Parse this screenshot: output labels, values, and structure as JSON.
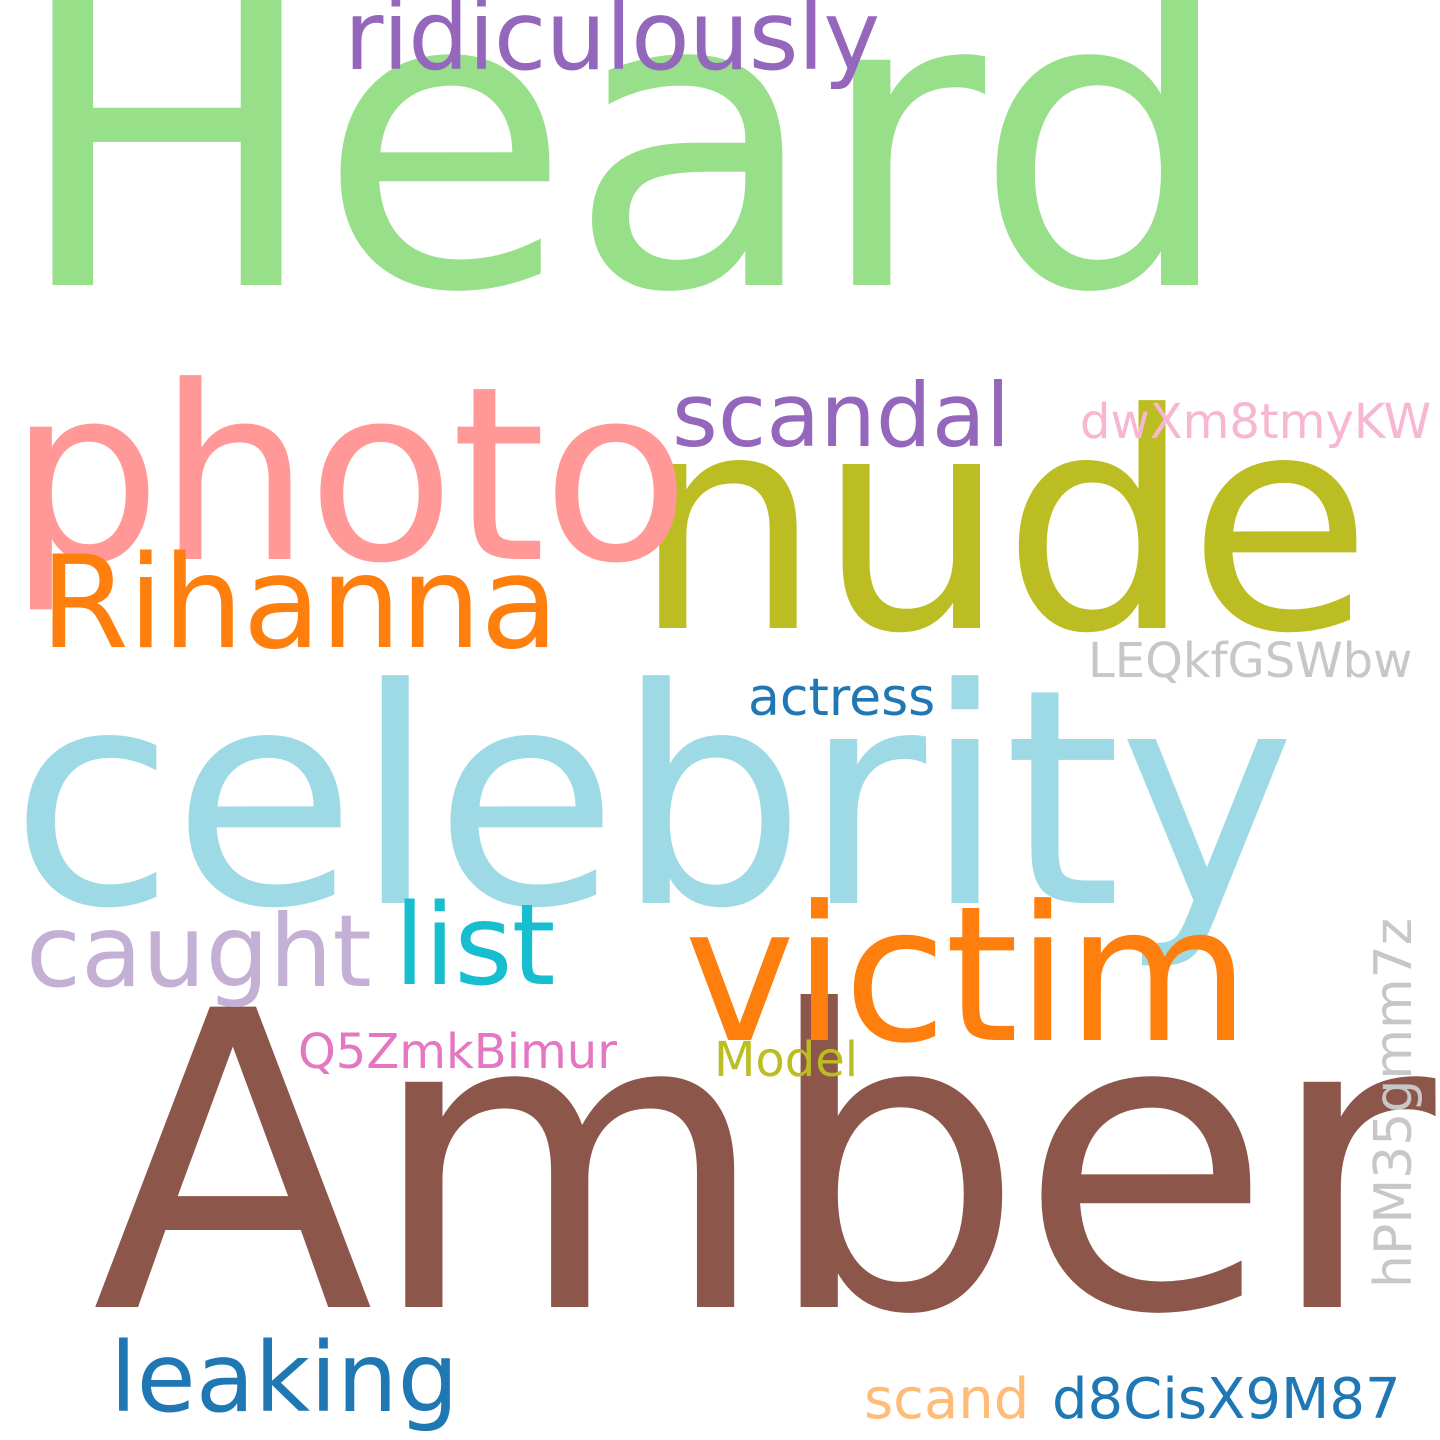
{
  "cloud": {
    "words": [
      {
        "id": "heard",
        "text": "Heard",
        "color": "#98df8a"
      },
      {
        "id": "amber",
        "text": "Amber",
        "color": "#8c564b"
      },
      {
        "id": "celebrity",
        "text": "celebrity",
        "color": "#9edae5"
      },
      {
        "id": "nude",
        "text": "nude",
        "color": "#bcbd22"
      },
      {
        "id": "photo",
        "text": "photo",
        "color": "#ff9896"
      },
      {
        "id": "victim",
        "text": "victim",
        "color": "#ff7f0e"
      },
      {
        "id": "rihanna",
        "text": "Rihanna",
        "color": "#ff7f0e"
      },
      {
        "id": "ridiculously",
        "text": "ridiculously",
        "color": "#9467bd"
      },
      {
        "id": "caught",
        "text": "caught",
        "color": "#c5b0d5"
      },
      {
        "id": "list",
        "text": "list",
        "color": "#17becf"
      },
      {
        "id": "scandal",
        "text": "scandal",
        "color": "#9467bd"
      },
      {
        "id": "leaking",
        "text": "leaking",
        "color": "#1f77b4"
      },
      {
        "id": "dwxm",
        "text": "dwXm8tmyKW",
        "color": "#f7b6d2"
      },
      {
        "id": "leqk",
        "text": "LEQkfGSWbw",
        "color": "#c7c7c7"
      },
      {
        "id": "actress",
        "text": "actress",
        "color": "#1f77b4"
      },
      {
        "id": "q5zm",
        "text": "Q5ZmkBimur",
        "color": "#e377c2"
      },
      {
        "id": "model",
        "text": "Model",
        "color": "#bcbd22"
      },
      {
        "id": "hpm",
        "text": "hPM35gmm7z",
        "color": "#c7c7c7"
      },
      {
        "id": "scand",
        "text": "scand",
        "color": "#ffbb78"
      },
      {
        "id": "d8cis",
        "text": "d8CisX9M87",
        "color": "#1f77b4"
      }
    ]
  }
}
